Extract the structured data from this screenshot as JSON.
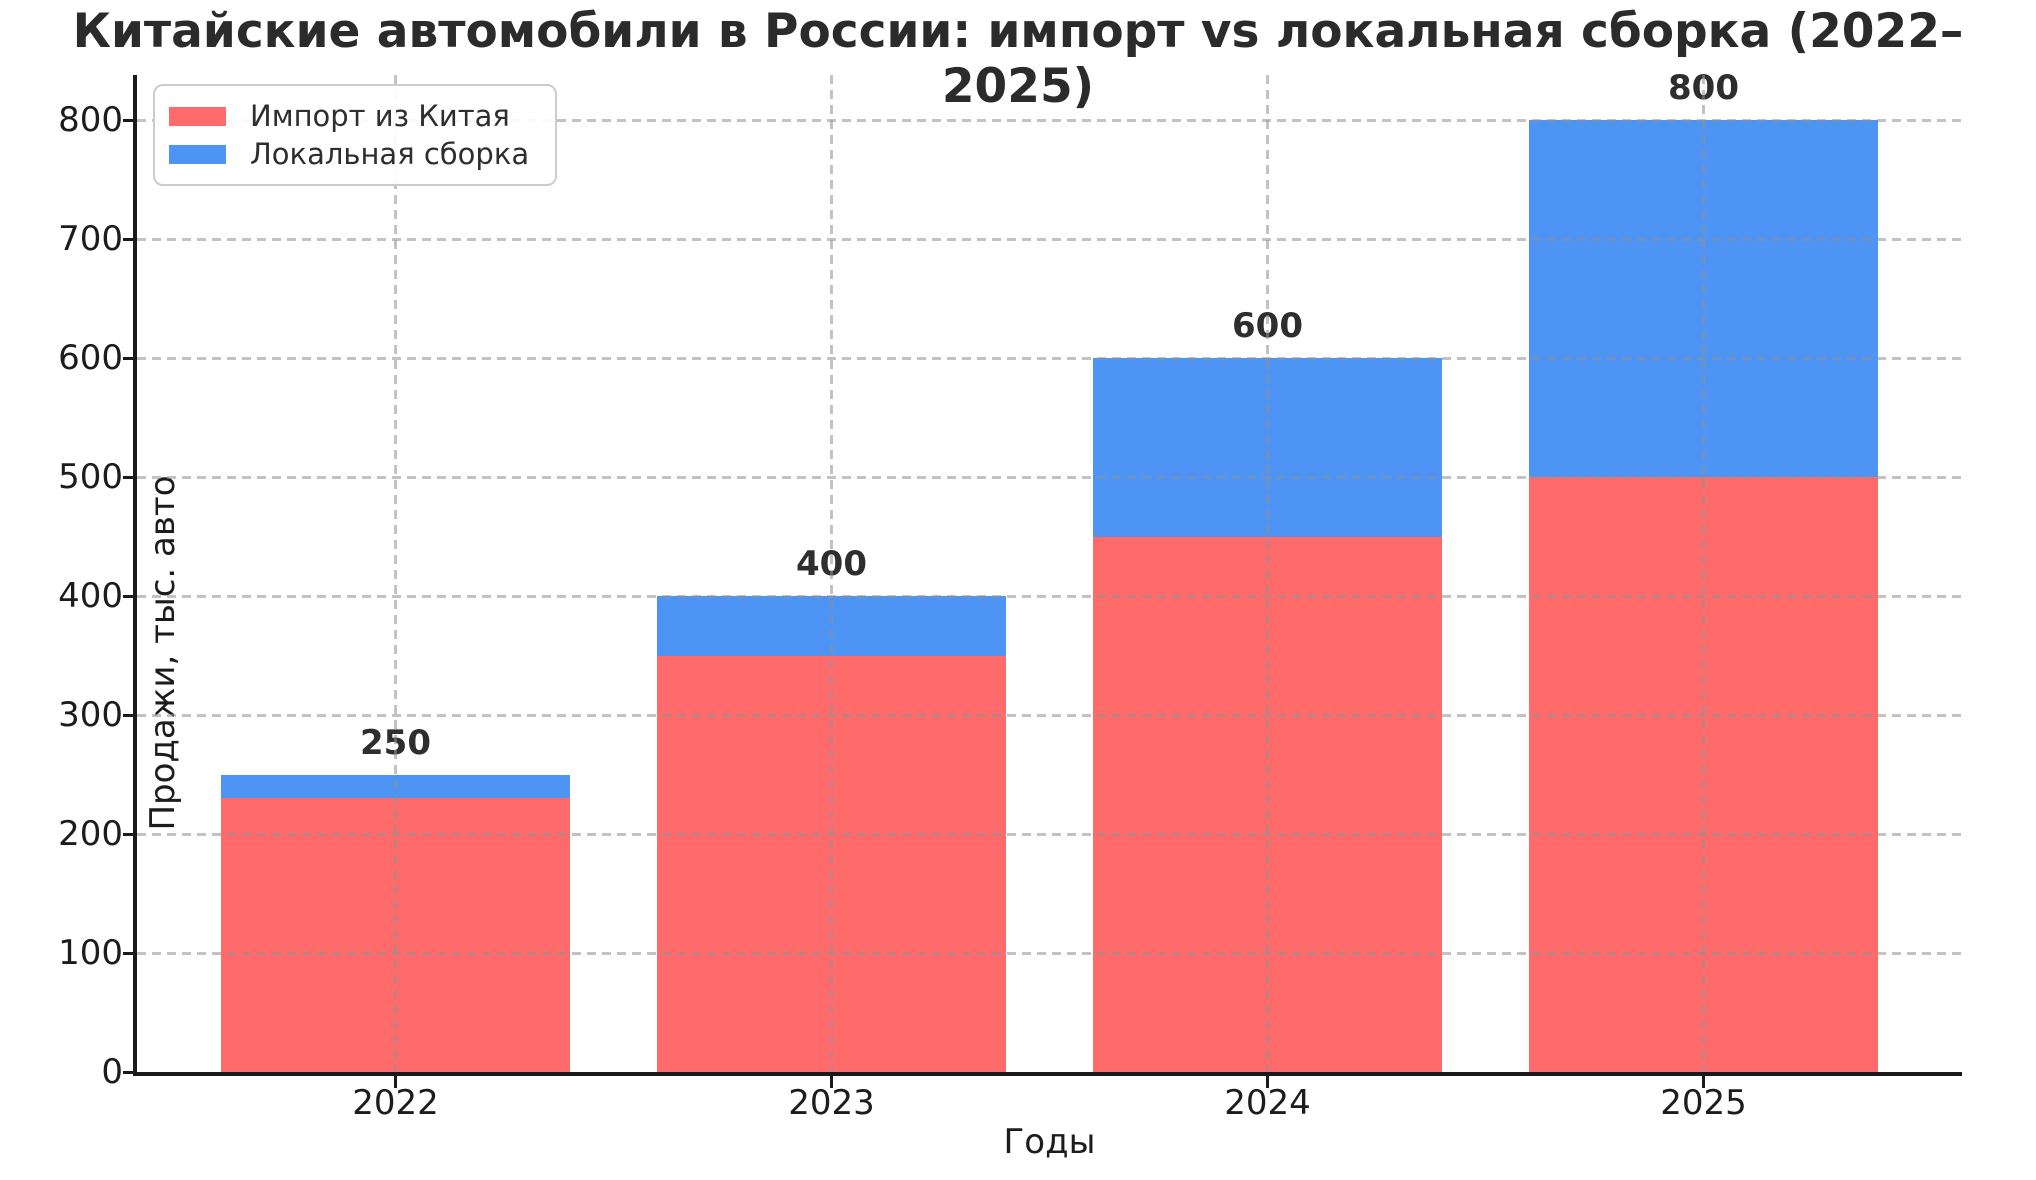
{
  "colors": {
    "import_red": "#FF6B6B",
    "local_blue": "#4D94F5",
    "grid": "#c9c9c9",
    "spine": "#1a1a1a",
    "title_text": "#2b2b2b",
    "tick_text": "#1c1c1c"
  },
  "chart_data": {
    "type": "bar",
    "stacked": true,
    "title": "Китайские автомобили в России: импорт vs локальная сборка (2022–2025)",
    "xlabel": "Годы",
    "ylabel": "Продажи, тыс. авто",
    "categories": [
      "2022",
      "2023",
      "2024",
      "2025"
    ],
    "series": [
      {
        "id": "import",
        "name": "Импорт из Китая",
        "color": "#FF6B6B",
        "values": [
          230,
          350,
          450,
          500
        ]
      },
      {
        "id": "local",
        "name": "Локальная сборка",
        "color": "#4D94F5",
        "values": [
          20,
          50,
          150,
          300
        ]
      }
    ],
    "totals": [
      250,
      400,
      600,
      800
    ],
    "total_labels": [
      "250",
      "400",
      "600",
      "800"
    ],
    "y_ticks": [
      0,
      100,
      200,
      300,
      400,
      500,
      600,
      700,
      800
    ],
    "ylim": [
      0,
      838
    ],
    "grid": "both, dashed, drawn above bars",
    "legend_position": "upper-left"
  }
}
